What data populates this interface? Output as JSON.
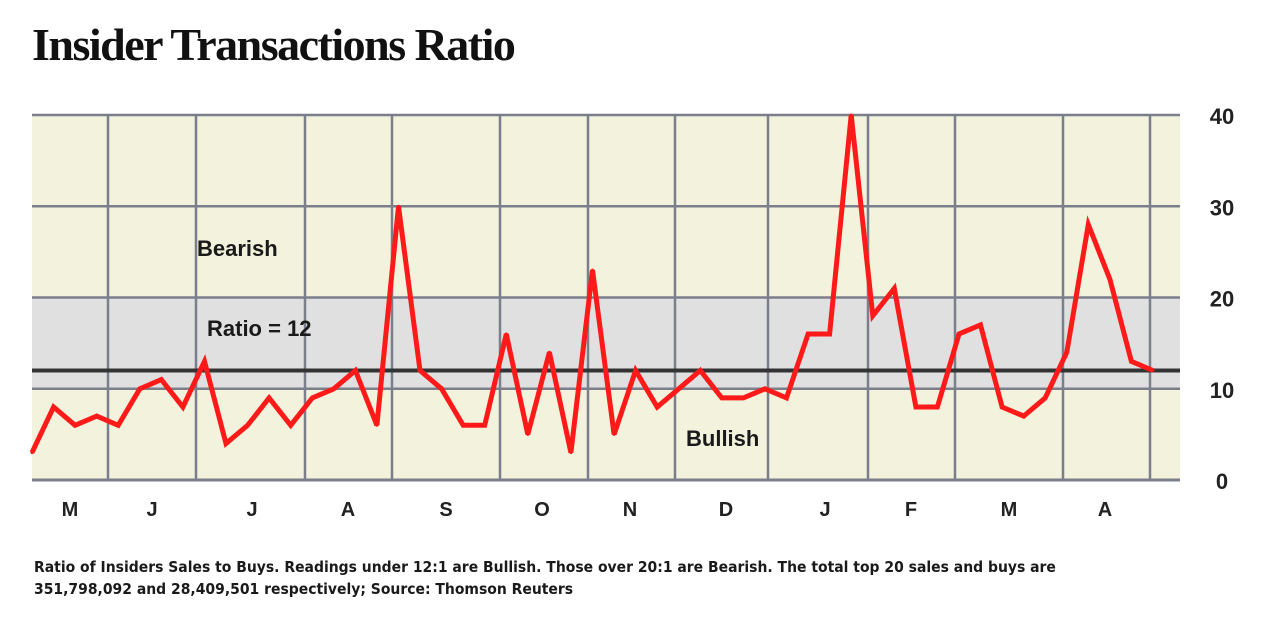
{
  "title": "Insider Transactions Ratio",
  "footnote": "Ratio of Insiders Sales to Buys. Readings under 12:1 are Bullish. Those over 20:1 are Bearish. The total top 20 sales and buys are 351,798,092 and 28,409,501 respectively; Source: Thomson Reuters",
  "colors": {
    "plot_background": "#f3f2dc",
    "neutral_band": "#e0e0e0",
    "grid": "#7b7f8c",
    "line": "#ff1a1a",
    "threshold_line": "#333333"
  },
  "chart_data": {
    "type": "line",
    "title": "Insider Transactions Ratio",
    "xlabel": "",
    "ylabel": "",
    "ylim": [
      0,
      40
    ],
    "y_ticks": [
      0,
      10,
      20,
      30,
      40
    ],
    "y_axis_side": "right",
    "grid": true,
    "x_tick_labels": [
      "M",
      "J",
      "J",
      "A",
      "S",
      "O",
      "N",
      "D",
      "J",
      "F",
      "M",
      "A"
    ],
    "bands": [
      {
        "from": 10,
        "to": 20,
        "note": "neutral"
      }
    ],
    "threshold": {
      "value": 12,
      "label": "Ratio = 12"
    },
    "annotations": [
      "Bearish",
      "Bullish"
    ],
    "series": [
      {
        "values": [
          3,
          8,
          6,
          7,
          6,
          10,
          11,
          8,
          13,
          4,
          6,
          9,
          6,
          9,
          10,
          12,
          6,
          30,
          12,
          10,
          6,
          6,
          16,
          5,
          14,
          3,
          23,
          5,
          12,
          8,
          10,
          12,
          9,
          9,
          10,
          9,
          16,
          16,
          40,
          18,
          21,
          8,
          8,
          16,
          17,
          8,
          7,
          9,
          14,
          28,
          22,
          13,
          12
        ]
      }
    ]
  }
}
